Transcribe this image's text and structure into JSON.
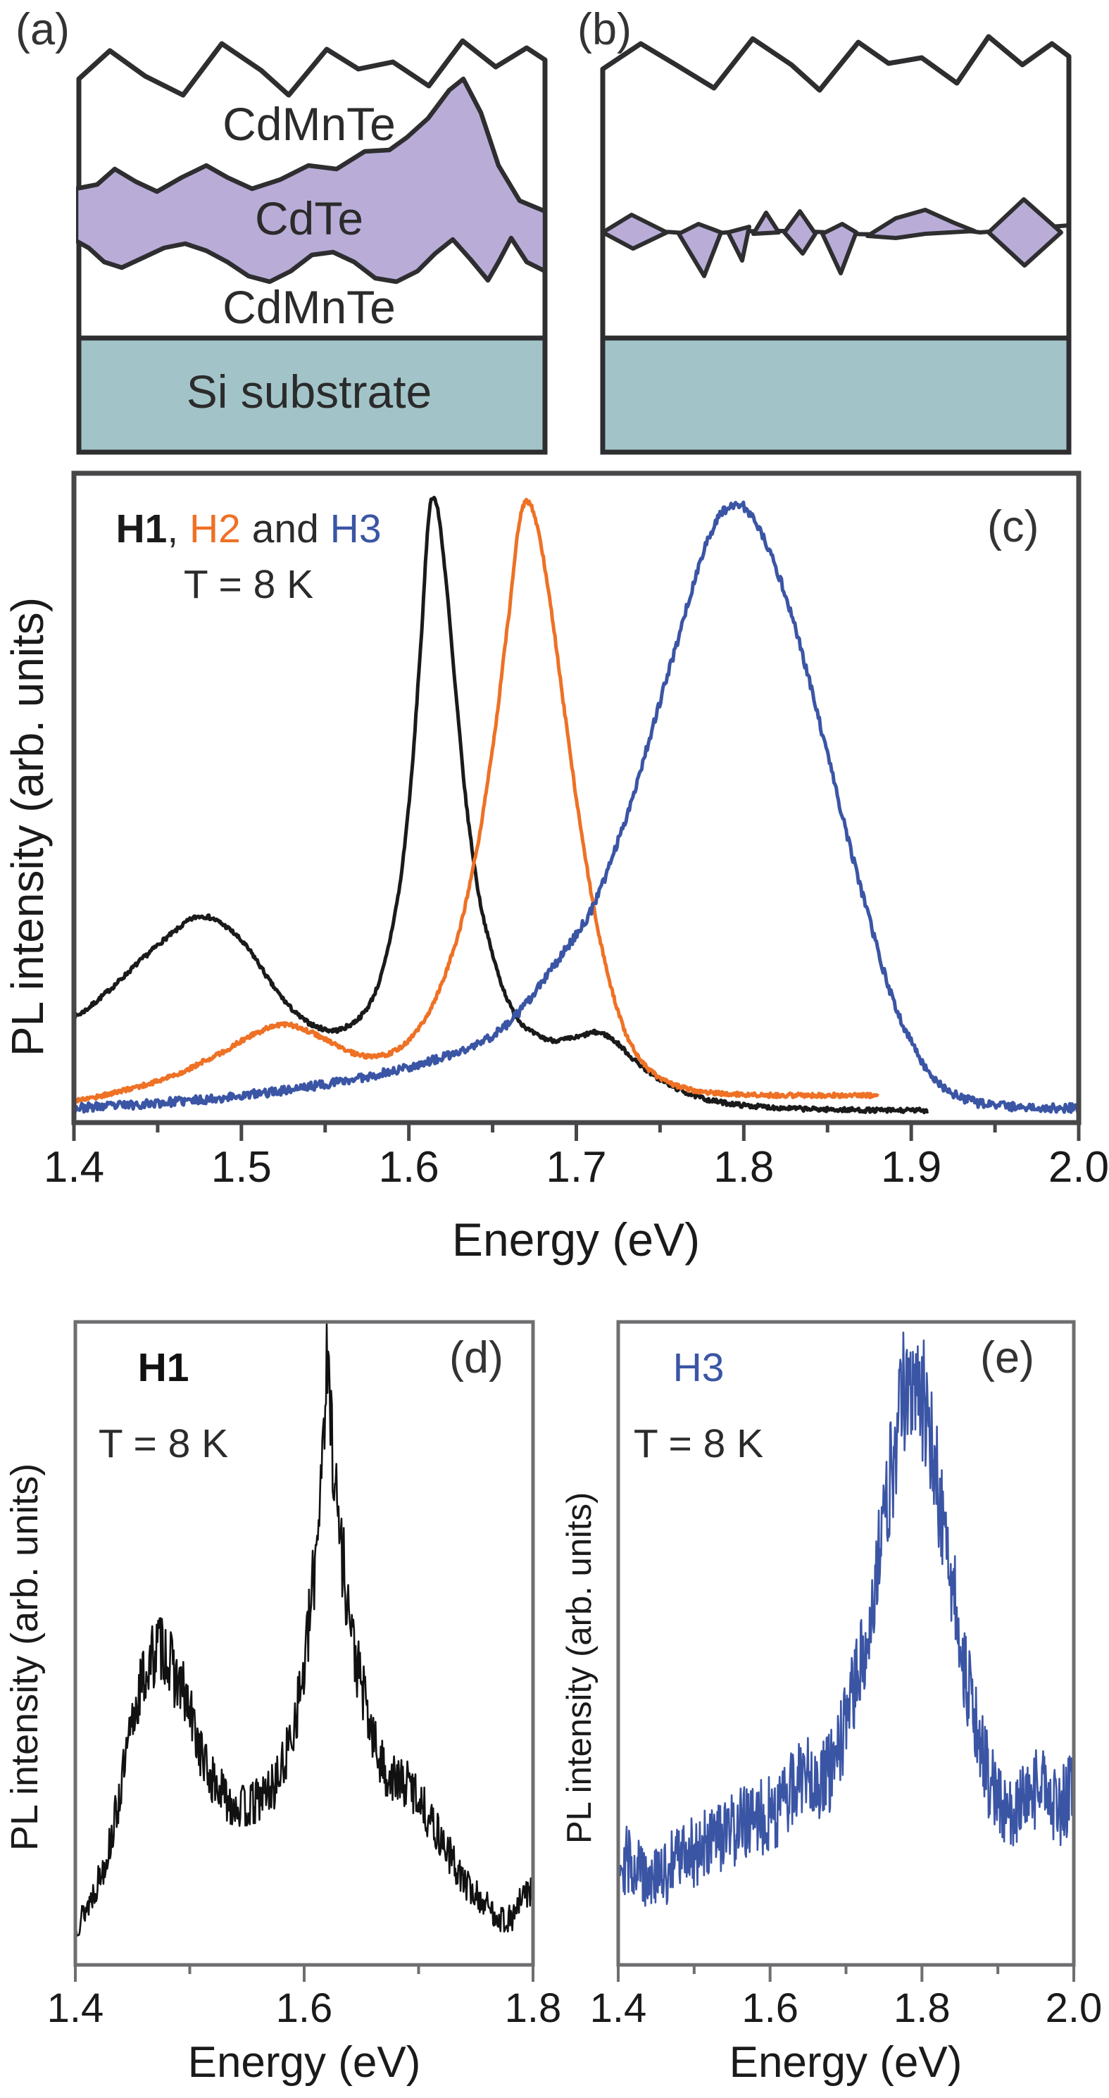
{
  "colors": {
    "h1_black": "#1a1a1a",
    "h2_orange": "#ee7125",
    "h3_blue": "#3b55a5",
    "frame_dark": "#47474a",
    "frame_light": "#6e6e70",
    "outline": "#2e2e30",
    "cdte_fill": "#b9add8",
    "substrate_fill": "#a2c4c8",
    "white": "#ffffff"
  },
  "panels": {
    "a": {
      "label": "(a)",
      "layers": {
        "top": "CdMnTe",
        "middle": "CdTe",
        "bottom": "CdMnTe",
        "substrate": "Si substrate"
      }
    },
    "b": {
      "label": "(b)"
    },
    "c": {
      "label": "(c)",
      "legend": {
        "h1": "H1",
        "comma": ", ",
        "h2": "H2",
        "and": " and ",
        "h3": "H3",
        "temperature": "T = 8 K"
      },
      "xlabel": "Energy (eV)",
      "ylabel": "PL intensity (arb. units)",
      "xticks": [
        "1.4",
        "1.5",
        "1.6",
        "1.7",
        "1.8",
        "1.9",
        "2.0"
      ]
    },
    "d": {
      "label": "(d)",
      "series_label": "H1",
      "temperature": "T = 8 K",
      "xlabel": "Energy (eV)",
      "ylabel": "PL intensity (arb. units)",
      "xticks": [
        "1.4",
        "1.6",
        "1.8"
      ]
    },
    "e": {
      "label": "(e)",
      "series_label": "H3",
      "temperature": "T = 8 K",
      "xlabel": "Energy (eV)",
      "ylabel": "PL intensity (arb. units)",
      "xticks": [
        "1.4",
        "1.6",
        "1.8",
        "2.0"
      ]
    }
  },
  "chart_data": [
    {
      "id": "c",
      "type": "line",
      "title": "PL spectra of samples H1, H2 and H3 at T = 8 K",
      "xlabel": "Energy (eV)",
      "ylabel": "PL intensity (arb. units)",
      "xlim": [
        1.4,
        2.0
      ],
      "ylim": [
        0,
        1
      ],
      "grid": false,
      "legend_position": "top-left",
      "xticks_major": [
        1.4,
        1.5,
        1.6,
        1.7,
        1.8,
        1.9,
        2.0
      ],
      "xticks_minor": [
        1.45,
        1.55,
        1.65,
        1.75,
        1.85,
        1.95
      ],
      "series": [
        {
          "name": "H1",
          "color": "#1a1a1a",
          "peak_eV": 1.613,
          "secondary_peak_eV": 1.475,
          "shoulder_eV": 1.71,
          "noise": 0.0035,
          "seed": 7,
          "points": [
            [
              1.4,
              0.155
            ],
            [
              1.42,
              0.195
            ],
            [
              1.44,
              0.245
            ],
            [
              1.46,
              0.29
            ],
            [
              1.475,
              0.315
            ],
            [
              1.49,
              0.3
            ],
            [
              1.505,
              0.26
            ],
            [
              1.52,
              0.2
            ],
            [
              1.535,
              0.155
            ],
            [
              1.55,
              0.135
            ],
            [
              1.562,
              0.138
            ],
            [
              1.575,
              0.168
            ],
            [
              1.585,
              0.235
            ],
            [
              1.595,
              0.37
            ],
            [
              1.602,
              0.55
            ],
            [
              1.608,
              0.78
            ],
            [
              1.612,
              0.955
            ],
            [
              1.616,
              0.975
            ],
            [
              1.621,
              0.88
            ],
            [
              1.627,
              0.7
            ],
            [
              1.634,
              0.5
            ],
            [
              1.642,
              0.345
            ],
            [
              1.652,
              0.235
            ],
            [
              1.662,
              0.165
            ],
            [
              1.672,
              0.133
            ],
            [
              1.685,
              0.118
            ],
            [
              1.7,
              0.122
            ],
            [
              1.712,
              0.13
            ],
            [
              1.722,
              0.118
            ],
            [
              1.735,
              0.085
            ],
            [
              1.75,
              0.055
            ],
            [
              1.765,
              0.035
            ],
            [
              1.78,
              0.022
            ],
            [
              1.8,
              0.014
            ],
            [
              1.83,
              0.009
            ],
            [
              1.86,
              0.007
            ],
            [
              1.885,
              0.006
            ],
            [
              1.91,
              0.006
            ]
          ]
        },
        {
          "name": "H2",
          "color": "#ee7125",
          "peak_eV": 1.668,
          "secondary_peak_eV": 1.525,
          "noise": 0.0035,
          "seed": 17,
          "points": [
            [
              1.4,
              0.022
            ],
            [
              1.43,
              0.038
            ],
            [
              1.46,
              0.062
            ],
            [
              1.49,
              0.1
            ],
            [
              1.51,
              0.13
            ],
            [
              1.525,
              0.143
            ],
            [
              1.54,
              0.132
            ],
            [
              1.555,
              0.112
            ],
            [
              1.57,
              0.094
            ],
            [
              1.585,
              0.094
            ],
            [
              1.6,
              0.118
            ],
            [
              1.615,
              0.178
            ],
            [
              1.63,
              0.29
            ],
            [
              1.642,
              0.44
            ],
            [
              1.652,
              0.62
            ],
            [
              1.66,
              0.8
            ],
            [
              1.666,
              0.94
            ],
            [
              1.671,
              0.975
            ],
            [
              1.677,
              0.93
            ],
            [
              1.684,
              0.82
            ],
            [
              1.692,
              0.66
            ],
            [
              1.7,
              0.5
            ],
            [
              1.71,
              0.335
            ],
            [
              1.72,
              0.21
            ],
            [
              1.73,
              0.125
            ],
            [
              1.742,
              0.075
            ],
            [
              1.755,
              0.05
            ],
            [
              1.77,
              0.038
            ],
            [
              1.79,
              0.032
            ],
            [
              1.82,
              0.03
            ],
            [
              1.85,
              0.03
            ],
            [
              1.88,
              0.03
            ]
          ]
        },
        {
          "name": "H3",
          "color": "#3b55a5",
          "peak_eV": 1.79,
          "noise": 0.007,
          "seed": 23,
          "points": [
            [
              1.4,
              0.01
            ],
            [
              1.44,
              0.016
            ],
            [
              1.48,
              0.024
            ],
            [
              1.52,
              0.036
            ],
            [
              1.56,
              0.052
            ],
            [
              1.59,
              0.068
            ],
            [
              1.61,
              0.082
            ],
            [
              1.625,
              0.094
            ],
            [
              1.64,
              0.11
            ],
            [
              1.655,
              0.135
            ],
            [
              1.67,
              0.175
            ],
            [
              1.685,
              0.23
            ],
            [
              1.7,
              0.285
            ],
            [
              1.71,
              0.33
            ],
            [
              1.72,
              0.4
            ],
            [
              1.733,
              0.5
            ],
            [
              1.746,
              0.62
            ],
            [
              1.759,
              0.74
            ],
            [
              1.772,
              0.86
            ],
            [
              1.782,
              0.935
            ],
            [
              1.79,
              0.965
            ],
            [
              1.798,
              0.97
            ],
            [
              1.806,
              0.945
            ],
            [
              1.816,
              0.89
            ],
            [
              1.828,
              0.8
            ],
            [
              1.84,
              0.68
            ],
            [
              1.852,
              0.55
            ],
            [
              1.864,
              0.42
            ],
            [
              1.876,
              0.3
            ],
            [
              1.888,
              0.19
            ],
            [
              1.9,
              0.115
            ],
            [
              1.912,
              0.062
            ],
            [
              1.925,
              0.032
            ],
            [
              1.94,
              0.018
            ],
            [
              1.96,
              0.012
            ],
            [
              1.98,
              0.01
            ],
            [
              2.0,
              0.01
            ]
          ]
        }
      ]
    },
    {
      "id": "d",
      "type": "line",
      "title": "PL spectrum of sample H1 at T = 8 K",
      "xlabel": "Energy (eV)",
      "ylabel": "PL intensity (arb. units)",
      "xlim": [
        1.4,
        1.8
      ],
      "ylim": [
        0,
        1
      ],
      "grid": false,
      "xticks_major": [
        1.4,
        1.6,
        1.8
      ],
      "xticks_minor": [
        1.5,
        1.7
      ],
      "series": [
        {
          "name": "H1",
          "color": "#111111",
          "peak_eV": 1.62,
          "secondary_peak_eV": 1.47,
          "noise_base": 0.018,
          "noise_scale": 0.08,
          "seed": 13,
          "points": [
            [
              1.4,
              0.05
            ],
            [
              1.415,
              0.1
            ],
            [
              1.43,
              0.18
            ],
            [
              1.445,
              0.32
            ],
            [
              1.455,
              0.42
            ],
            [
              1.465,
              0.47
            ],
            [
              1.475,
              0.5
            ],
            [
              1.485,
              0.46
            ],
            [
              1.495,
              0.42
            ],
            [
              1.505,
              0.36
            ],
            [
              1.515,
              0.3
            ],
            [
              1.525,
              0.27
            ],
            [
              1.535,
              0.25
            ],
            [
              1.55,
              0.24
            ],
            [
              1.565,
              0.26
            ],
            [
              1.575,
              0.28
            ],
            [
              1.585,
              0.33
            ],
            [
              1.6,
              0.46
            ],
            [
              1.608,
              0.6
            ],
            [
              1.614,
              0.76
            ],
            [
              1.619,
              0.92
            ],
            [
              1.622,
              0.9
            ],
            [
              1.628,
              0.74
            ],
            [
              1.635,
              0.62
            ],
            [
              1.643,
              0.5
            ],
            [
              1.652,
              0.42
            ],
            [
              1.66,
              0.35
            ],
            [
              1.67,
              0.3
            ],
            [
              1.682,
              0.28
            ],
            [
              1.695,
              0.27
            ],
            [
              1.71,
              0.22
            ],
            [
              1.725,
              0.17
            ],
            [
              1.74,
              0.12
            ],
            [
              1.755,
              0.09
            ],
            [
              1.77,
              0.065
            ],
            [
              1.78,
              0.06
            ],
            [
              1.79,
              0.09
            ],
            [
              1.8,
              0.11
            ]
          ]
        }
      ]
    },
    {
      "id": "e",
      "type": "line",
      "title": "PL spectrum of sample H3 at T = 8 K",
      "xlabel": "Energy (eV)",
      "ylabel": "PL intensity (arb. units)",
      "xlim": [
        1.4,
        2.0
      ],
      "ylim": [
        0,
        1
      ],
      "grid": false,
      "xticks_major": [
        1.4,
        1.6,
        1.8,
        2.0
      ],
      "xticks_minor": [
        1.5,
        1.7,
        1.9
      ],
      "series": [
        {
          "name": "H3",
          "color": "#3b55a5",
          "peak_eV": 1.79,
          "noise_base": 0.048,
          "noise_scale": 0.06,
          "seed": 29,
          "points": [
            [
              1.4,
              0.16
            ],
            [
              1.42,
              0.15
            ],
            [
              1.44,
              0.13
            ],
            [
              1.46,
              0.13
            ],
            [
              1.48,
              0.16
            ],
            [
              1.5,
              0.17
            ],
            [
              1.52,
              0.18
            ],
            [
              1.54,
              0.19
            ],
            [
              1.56,
              0.21
            ],
            [
              1.58,
              0.22
            ],
            [
              1.6,
              0.23
            ],
            [
              1.62,
              0.25
            ],
            [
              1.635,
              0.28
            ],
            [
              1.65,
              0.3
            ],
            [
              1.665,
              0.28
            ],
            [
              1.68,
              0.3
            ],
            [
              1.7,
              0.37
            ],
            [
              1.715,
              0.45
            ],
            [
              1.73,
              0.54
            ],
            [
              1.745,
              0.65
            ],
            [
              1.76,
              0.78
            ],
            [
              1.775,
              0.9
            ],
            [
              1.785,
              0.93
            ],
            [
              1.795,
              0.91
            ],
            [
              1.805,
              0.88
            ],
            [
              1.815,
              0.8
            ],
            [
              1.83,
              0.68
            ],
            [
              1.845,
              0.56
            ],
            [
              1.86,
              0.44
            ],
            [
              1.875,
              0.35
            ],
            [
              1.89,
              0.28
            ],
            [
              1.905,
              0.24
            ],
            [
              1.92,
              0.23
            ],
            [
              1.94,
              0.26
            ],
            [
              1.96,
              0.27
            ],
            [
              1.98,
              0.24
            ],
            [
              2.0,
              0.27
            ]
          ]
        }
      ]
    }
  ]
}
